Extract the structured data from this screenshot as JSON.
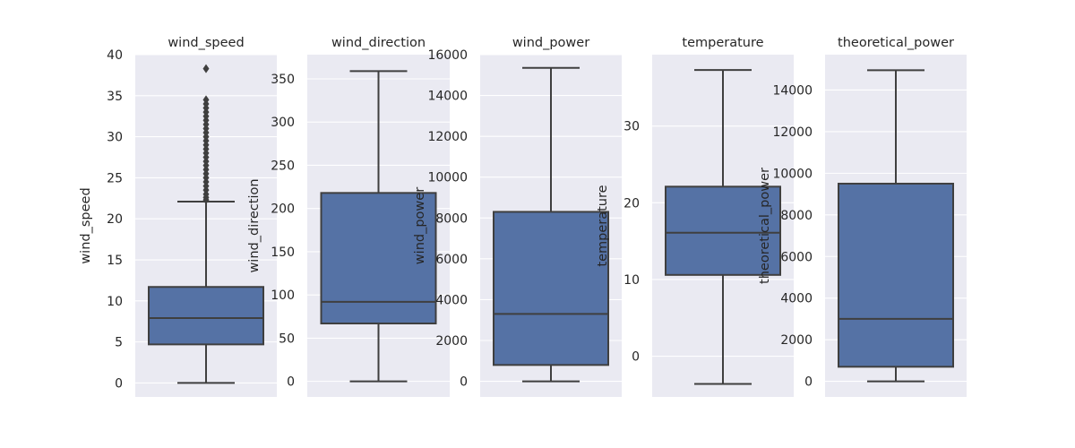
{
  "chart_data": [
    {
      "type": "box",
      "title": "wind_speed",
      "ylabel": "wind_speed",
      "ylim": [
        -1.7,
        40.0
      ],
      "yticks": [
        0,
        5,
        10,
        15,
        20,
        25,
        30,
        35,
        40
      ],
      "grid": true,
      "box": {
        "min": 0,
        "q1": 4.7,
        "median": 7.9,
        "q3": 11.7,
        "max": 22.1,
        "color": "#5572a5"
      },
      "outliers": [
        22.3,
        22.6,
        23.0,
        23.5,
        24.0,
        24.5,
        25.0,
        25.5,
        26.0,
        26.5,
        27.0,
        27.5,
        28.0,
        28.5,
        29.0,
        29.5,
        30.0,
        30.5,
        31.0,
        31.5,
        32.0,
        32.5,
        33.0,
        33.5,
        34.0,
        34.5,
        38.3
      ]
    },
    {
      "type": "box",
      "title": "wind_direction",
      "ylabel": "wind_direction",
      "ylim": [
        -18,
        378
      ],
      "yticks": [
        0,
        50,
        100,
        150,
        200,
        250,
        300,
        350
      ],
      "grid": true,
      "box": {
        "min": 0,
        "q1": 67,
        "median": 92,
        "q3": 218,
        "max": 359,
        "color": "#5572a5"
      },
      "outliers": []
    },
    {
      "type": "box",
      "title": "wind_power",
      "ylabel": "wind_power",
      "ylim": [
        -765,
        16000
      ],
      "yticks": [
        0,
        2000,
        4000,
        6000,
        8000,
        10000,
        12000,
        14000,
        16000
      ],
      "grid": true,
      "box": {
        "min": 0,
        "q1": 800,
        "median": 3300,
        "q3": 8300,
        "max": 15350,
        "color": "#5572a5"
      },
      "outliers": []
    },
    {
      "type": "box",
      "title": "temperature",
      "ylabel": "temperature",
      "ylim": [
        -5.3,
        39.3
      ],
      "yticks": [
        0,
        10,
        20,
        30
      ],
      "grid": true,
      "box": {
        "min": -3.6,
        "q1": 10.6,
        "median": 16.1,
        "q3": 22.1,
        "max": 37.3,
        "color": "#5572a5"
      },
      "outliers": []
    },
    {
      "type": "box",
      "title": "theoretical_power",
      "ylabel": "theoretical_power",
      "ylim": [
        -750,
        15700
      ],
      "yticks": [
        0,
        2000,
        4000,
        6000,
        8000,
        10000,
        12000,
        14000
      ],
      "grid": true,
      "box": {
        "min": 0,
        "q1": 700,
        "median": 3000,
        "q3": 9500,
        "max": 14950,
        "color": "#5572a5"
      },
      "outliers": []
    }
  ]
}
